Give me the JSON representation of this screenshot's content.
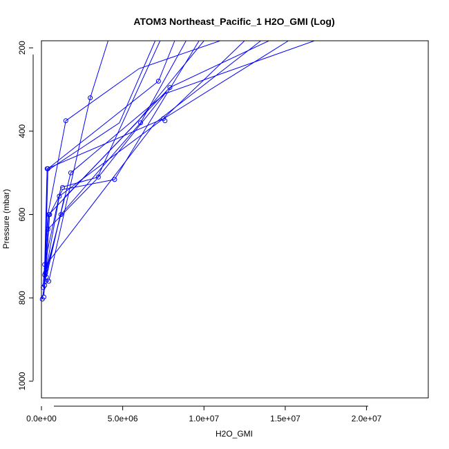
{
  "chart_data": {
    "type": "line",
    "title": "ATOM3 Northeast_Pacific_1 H2O_GMI (Log)",
    "xlabel": "H2O_GMI",
    "ylabel": "Pressure (mbar)",
    "xlim": [
      0,
      23800000
    ],
    "ylim": [
      1040,
      183
    ],
    "y_reversed": true,
    "x_ticks": [
      0,
      5000000,
      10000000,
      15000000,
      20000000
    ],
    "x_tick_labels": [
      "0.0e+00",
      "5.0e+06",
      "1.0e+07",
      "1.5e+07",
      "2.0e+07"
    ],
    "y_ticks": [
      200,
      400,
      600,
      800,
      1000
    ],
    "y_tick_labels": [
      "200",
      "400",
      "600",
      "800",
      "1000"
    ],
    "grid": false,
    "colors": {
      "series": "#0000ff"
    },
    "series": [
      {
        "values": [
          [
            50000,
            803
          ],
          [
            300000,
            740
          ],
          [
            1800000,
            500
          ],
          [
            7600000,
            310
          ],
          [
            16800000,
            183
          ]
        ]
      },
      {
        "values": [
          [
            100000,
            775
          ],
          [
            400000,
            600
          ],
          [
            1500000,
            375
          ],
          [
            6000000,
            250
          ],
          [
            11000000,
            183
          ]
        ]
      },
      {
        "values": [
          [
            200000,
            720
          ],
          [
            350000,
            490
          ],
          [
            7500000,
            370
          ],
          [
            12500000,
            183
          ]
        ]
      },
      {
        "values": [
          [
            150000,
            795
          ],
          [
            300000,
            700
          ],
          [
            1200000,
            535
          ],
          [
            3500000,
            510
          ],
          [
            7700000,
            305
          ]
        ]
      },
      {
        "values": [
          [
            250000,
            760
          ],
          [
            500000,
            600
          ],
          [
            1300000,
            540
          ],
          [
            4500000,
            516
          ],
          [
            9700000,
            183
          ]
        ]
      },
      {
        "values": [
          [
            100000,
            760
          ],
          [
            450000,
            760
          ],
          [
            3000000,
            320
          ],
          [
            4100000,
            183
          ]
        ]
      },
      {
        "values": [
          [
            200000,
            770
          ],
          [
            400000,
            490
          ],
          [
            7200000,
            280
          ],
          [
            8200000,
            183
          ]
        ]
      },
      {
        "values": [
          [
            300000,
            730
          ],
          [
            1100000,
            556
          ],
          [
            7400000,
            373
          ],
          [
            15200000,
            183
          ]
        ]
      },
      {
        "values": [
          [
            250000,
            740
          ],
          [
            1200000,
            600
          ],
          [
            6100000,
            380
          ],
          [
            8900000,
            183
          ]
        ]
      },
      {
        "values": [
          [
            150000,
            790
          ],
          [
            450000,
            600
          ],
          [
            7900000,
            295
          ],
          [
            14000000,
            183
          ]
        ]
      },
      {
        "values": [
          [
            200000,
            745
          ],
          [
            300000,
            720
          ],
          [
            7000000,
            380
          ],
          [
            13500000,
            183
          ]
        ]
      },
      {
        "values": [
          [
            100000,
            775
          ],
          [
            400000,
            635
          ],
          [
            3400000,
            515
          ],
          [
            7300000,
            183
          ]
        ]
      },
      {
        "values": [
          [
            300000,
            750
          ],
          [
            1400000,
            560
          ],
          [
            5900000,
            378
          ],
          [
            10000000,
            183
          ]
        ]
      },
      {
        "values": [
          [
            200000,
            780
          ],
          [
            350000,
            495
          ],
          [
            4800000,
            380
          ],
          [
            7000000,
            183
          ]
        ]
      }
    ],
    "points": [
      [
        50000,
        803
      ],
      [
        150000,
        798
      ],
      [
        100000,
        775
      ],
      [
        200000,
        770
      ],
      [
        250000,
        760
      ],
      [
        450000,
        760
      ],
      [
        300000,
        750
      ],
      [
        200000,
        745
      ],
      [
        250000,
        740
      ],
      [
        300000,
        730
      ],
      [
        200000,
        720
      ],
      [
        400000,
        635
      ],
      [
        450000,
        600
      ],
      [
        500000,
        600
      ],
      [
        1200000,
        600
      ],
      [
        1100000,
        556
      ],
      [
        1300000,
        535
      ],
      [
        1800000,
        500
      ],
      [
        3500000,
        510
      ],
      [
        4500000,
        516
      ],
      [
        350000,
        490
      ],
      [
        400000,
        490
      ],
      [
        1500000,
        375
      ],
      [
        3000000,
        320
      ],
      [
        6100000,
        380
      ],
      [
        7500000,
        370
      ],
      [
        7600000,
        375
      ],
      [
        7200000,
        280
      ],
      [
        7900000,
        295
      ]
    ]
  }
}
